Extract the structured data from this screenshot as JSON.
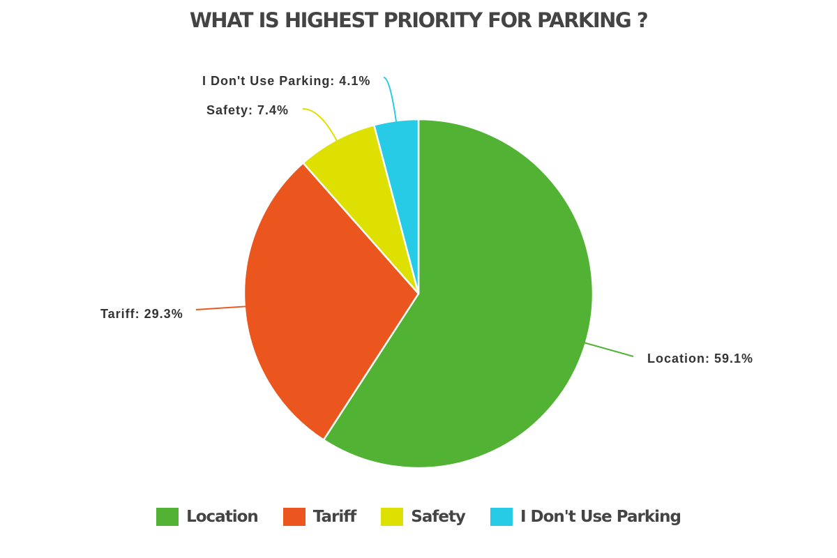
{
  "chart_data": {
    "type": "pie",
    "title": "WHAT IS HIGHEST PRIORITY FOR PARKING ?",
    "slices": [
      {
        "name": "Location",
        "value": 59.1,
        "label": "Location: 59.1%",
        "color": "#52b234"
      },
      {
        "name": "Tariff",
        "value": 29.3,
        "label": "Tariff: 29.3%",
        "color": "#ea561d"
      },
      {
        "name": "Safety",
        "value": 7.4,
        "label": "Safety: 7.4%",
        "color": "#dde000"
      },
      {
        "name": "I Don't Use Parking",
        "value": 4.1,
        "label": "I Don't Use Parking: 4.1%",
        "color": "#28cbe6"
      }
    ],
    "start_angle": "top",
    "direction": "clockwise",
    "legend": "bottom",
    "slice_border": "#ffffff"
  }
}
